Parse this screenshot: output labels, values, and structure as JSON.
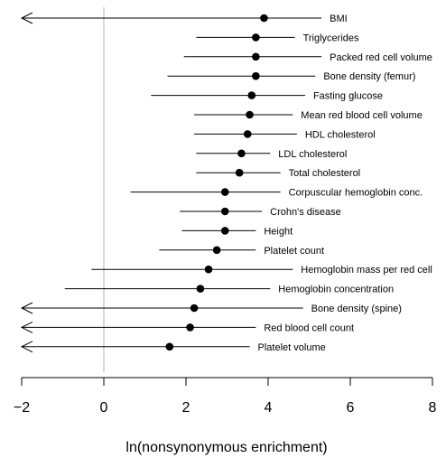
{
  "chart_data": {
    "type": "forest",
    "xlabel": "ln(nonsynonymous enrichment)",
    "xlim": [
      -2,
      8
    ],
    "xticks": [
      -2,
      0,
      2,
      4,
      6,
      8
    ],
    "reference_line": 0,
    "rows": [
      {
        "label": "BMI",
        "estimate": 3.9,
        "lower": -2,
        "upper": 5.3,
        "lower_truncated": true
      },
      {
        "label": "Triglycerides",
        "estimate": 3.7,
        "lower": 2.25,
        "upper": 4.65
      },
      {
        "label": "Packed red cell volume",
        "estimate": 3.7,
        "lower": 1.95,
        "upper": 5.3
      },
      {
        "label": "Bone density (femur)",
        "estimate": 3.7,
        "lower": 1.55,
        "upper": 5.15
      },
      {
        "label": "Fasting glucose",
        "estimate": 3.6,
        "lower": 1.15,
        "upper": 4.9
      },
      {
        "label": "Mean red blood cell volume",
        "estimate": 3.55,
        "lower": 2.2,
        "upper": 4.6
      },
      {
        "label": "HDL cholesterol",
        "estimate": 3.5,
        "lower": 2.2,
        "upper": 4.7
      },
      {
        "label": "LDL cholesterol",
        "estimate": 3.35,
        "lower": 2.25,
        "upper": 4.05
      },
      {
        "label": "Total cholesterol",
        "estimate": 3.3,
        "lower": 2.25,
        "upper": 4.3
      },
      {
        "label": "Corpuscular hemoglobin conc.",
        "estimate": 2.95,
        "lower": 0.65,
        "upper": 4.3
      },
      {
        "label": "Crohn's disease",
        "estimate": 2.95,
        "lower": 1.85,
        "upper": 3.85
      },
      {
        "label": "Height",
        "estimate": 2.95,
        "lower": 1.9,
        "upper": 3.7
      },
      {
        "label": "Platelet count",
        "estimate": 2.75,
        "lower": 1.35,
        "upper": 3.7
      },
      {
        "label": "Hemoglobin mass per red cell",
        "estimate": 2.55,
        "lower": -0.3,
        "upper": 4.6
      },
      {
        "label": "Hemoglobin concentration",
        "estimate": 2.35,
        "lower": -0.95,
        "upper": 4.05
      },
      {
        "label": "Bone density (spine)",
        "estimate": 2.2,
        "lower": -2,
        "upper": 4.85,
        "lower_truncated": true
      },
      {
        "label": "Red blood cell count",
        "estimate": 2.1,
        "lower": -2,
        "upper": 3.7,
        "lower_truncated": true
      },
      {
        "label": "Platelet volume",
        "estimate": 1.6,
        "lower": -2,
        "upper": 3.55,
        "lower_truncated": true
      }
    ]
  }
}
